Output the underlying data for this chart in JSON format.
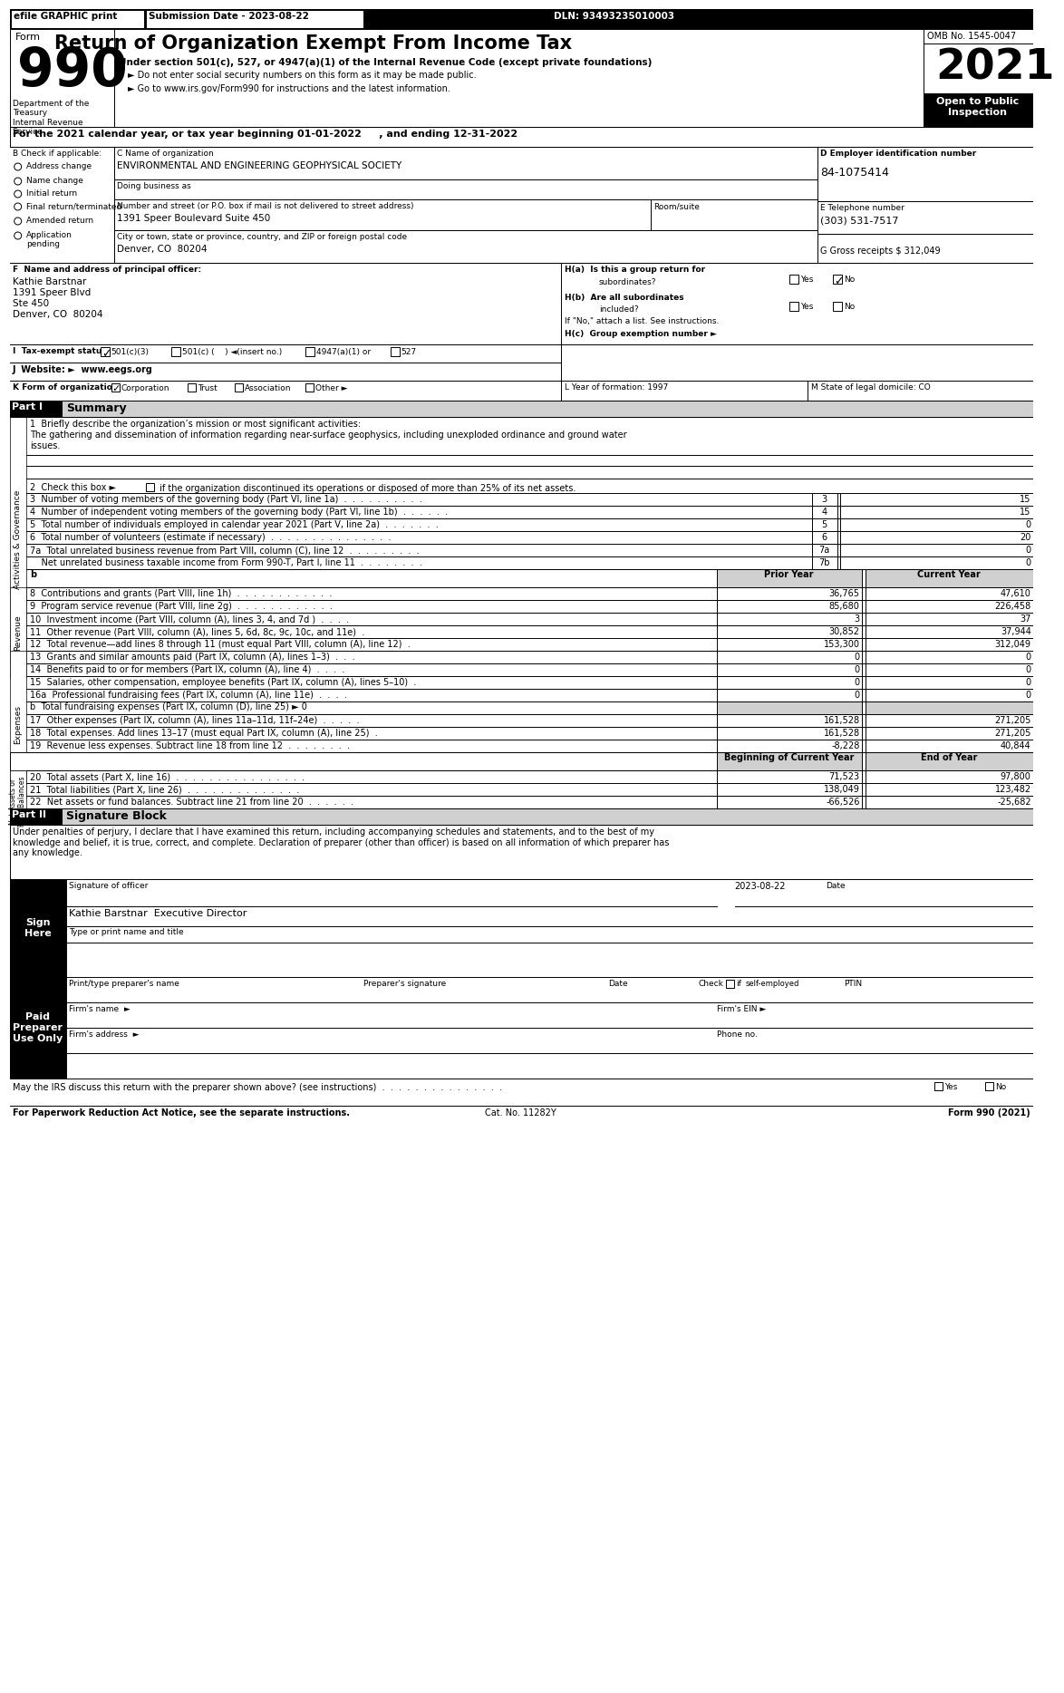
{
  "efile_text": "efile GRAPHIC print",
  "submission_date": "Submission Date - 2023-08-22",
  "dln": "DLN: 93493235010003",
  "form_number": "990",
  "title": "Return of Organization Exempt From Income Tax",
  "subtitle1": "Under section 501(c), 527, or 4947(a)(1) of the Internal Revenue Code (except private foundations)",
  "subtitle2": "► Do not enter social security numbers on this form as it may be made public.",
  "subtitle3": "► Go to www.irs.gov/Form990 for instructions and the latest information.",
  "omb": "OMB No. 1545-0047",
  "year": "2021",
  "dept_treasury": "Department of the\nTreasury\nInternal Revenue\nService",
  "tax_year_line": "For the 2021 calendar year, or tax year beginning 01-01-2022     , and ending 12-31-2022",
  "b_label": "B Check if applicable:",
  "check_items": [
    "Address change",
    "Name change",
    "Initial return",
    "Final return/terminated",
    "Amended return",
    "Application\npending"
  ],
  "c_label": "C Name of organization",
  "org_name": "ENVIRONMENTAL AND ENGINEERING GEOPHYSICAL SOCIETY",
  "dba_label": "Doing business as",
  "d_label": "D Employer identification number",
  "ein": "84-1075414",
  "street_label": "Number and street (or P.O. box if mail is not delivered to street address)",
  "room_label": "Room/suite",
  "street": "1391 Speer Boulevard Suite 450",
  "e_label": "E Telephone number",
  "phone": "(303) 531-7517",
  "city_label": "City or town, state or province, country, and ZIP or foreign postal code",
  "city": "Denver, CO  80204",
  "g_label": "G Gross receipts $ 312,049",
  "f_label": "F  Name and address of principal officer:",
  "officer_name": "Kathie Barstnar",
  "officer_addr1": "1391 Speer Blvd",
  "officer_addr2": "Ste 450",
  "officer_addr3": "Denver, CO  80204",
  "ha_label": "H(a)  Is this a group return for",
  "ha_subtext": "subordinates?",
  "hb_label": "H(b)  Are all subordinates",
  "hb_subtext": "included?",
  "hb_note": "If \"No,\" attach a list. See instructions.",
  "hc_label": "H(c)  Group exemption number ►",
  "i_label": "I  Tax-exempt status:",
  "tax_s1": "501(c)(3)",
  "tax_s2": "501(c) (    ) ◄(insert no.)",
  "tax_s3": "4947(a)(1) or",
  "tax_s4": "527",
  "j_label": "J  Website: ►  www.eegs.org",
  "k_label": "K Form of organization:",
  "k_corp": "Corporation",
  "k_trust": "Trust",
  "k_assoc": "Association",
  "k_other": "Other ►",
  "l_label": "L Year of formation: 1997",
  "m_label": "M State of legal domicile: CO",
  "part1_label": "Part I",
  "part1_title": "Summary",
  "mission_label": "1  Briefly describe the organization’s mission or most significant activities:",
  "mission_text": "The gathering and dissemination of information regarding near-surface geophysics, including unexploded ordinance and ground water\nissues.",
  "check2_text": "2  Check this box ►",
  "check2_rest": " if the organization discontinued its operations or disposed of more than 25% of its net assets.",
  "line3_label": "3  Number of voting members of the governing body (Part VI, line 1a)  .  .  .  .  .  .  .  .  .  .",
  "line3_num": "3",
  "line3_val": "15",
  "line4_label": "4  Number of independent voting members of the governing body (Part VI, line 1b)  .  .  .  .  .  .",
  "line4_num": "4",
  "line4_val": "15",
  "line5_label": "5  Total number of individuals employed in calendar year 2021 (Part V, line 2a)  .  .  .  .  .  .  .",
  "line5_num": "5",
  "line5_val": "0",
  "line6_label": "6  Total number of volunteers (estimate if necessary)  .  .  .  .  .  .  .  .  .  .  .  .  .  .  .",
  "line6_num": "6",
  "line6_val": "20",
  "line7a_label": "7a  Total unrelated business revenue from Part VIII, column (C), line 12  .  .  .  .  .  .  .  .  .",
  "line7a_num": "7a",
  "line7a_val": "0",
  "line7b_label": "    Net unrelated business taxable income from Form 990-T, Part I, line 11  .  .  .  .  .  .  .  .",
  "line7b_num": "7b",
  "line7b_val": "0",
  "prior_year": "Prior Year",
  "current_year": "Current Year",
  "b_header": "b",
  "line8_label": "8  Contributions and grants (Part VIII, line 1h)  .  .  .  .  .  .  .  .  .  .  .  .",
  "line8_prior": "36,765",
  "line8_curr": "47,610",
  "line9_label": "9  Program service revenue (Part VIII, line 2g)  .  .  .  .  .  .  .  .  .  .  .  .",
  "line9_prior": "85,680",
  "line9_curr": "226,458",
  "line10_label": "10  Investment income (Part VIII, column (A), lines 3, 4, and 7d )  .  .  .  .",
  "line10_prior": "3",
  "line10_curr": "37",
  "line11_label": "11  Other revenue (Part VIII, column (A), lines 5, 6d, 8c, 9c, 10c, and 11e)  .",
  "line11_prior": "30,852",
  "line11_curr": "37,944",
  "line12_label": "12  Total revenue—add lines 8 through 11 (must equal Part VIII, column (A), line 12)  .",
  "line12_prior": "153,300",
  "line12_curr": "312,049",
  "line13_label": "13  Grants and similar amounts paid (Part IX, column (A), lines 1–3)  .  .  .",
  "line13_prior": "0",
  "line13_curr": "0",
  "line14_label": "14  Benefits paid to or for members (Part IX, column (A), line 4)  .  .  .  .",
  "line14_prior": "0",
  "line14_curr": "0",
  "line15_label": "15  Salaries, other compensation, employee benefits (Part IX, column (A), lines 5–10)  .",
  "line15_prior": "0",
  "line15_curr": "0",
  "line16a_label": "16a  Professional fundraising fees (Part IX, column (A), line 11e)  .  .  .  .",
  "line16a_prior": "0",
  "line16a_curr": "0",
  "line16b_label": "b  Total fundraising expenses (Part IX, column (D), line 25) ► 0",
  "line17_label": "17  Other expenses (Part IX, column (A), lines 11a–11d, 11f–24e)  .  .  .  .  .",
  "line17_prior": "161,528",
  "line17_curr": "271,205",
  "line18_label": "18  Total expenses. Add lines 13–17 (must equal Part IX, column (A), line 25)  .",
  "line18_prior": "161,528",
  "line18_curr": "271,205",
  "line19_label": "19  Revenue less expenses. Subtract line 18 from line 12  .  .  .  .  .  .  .  .",
  "line19_prior": "-8,228",
  "line19_curr": "40,844",
  "boc_year": "Beginning of Current Year",
  "eoy_label": "End of Year",
  "line20_label": "20  Total assets (Part X, line 16)  .  .  .  .  .  .  .  .  .  .  .  .  .  .  .  .",
  "line20_boc": "71,523",
  "line20_eoy": "97,800",
  "line21_label": "21  Total liabilities (Part X, line 26)  .  .  .  .  .  .  .  .  .  .  .  .  .  .",
  "line21_boc": "138,049",
  "line21_eoy": "123,482",
  "line22_label": "22  Net assets or fund balances. Subtract line 21 from line 20  .  .  .  .  .  .",
  "line22_boc": "-66,526",
  "line22_eoy": "-25,682",
  "part2_label": "Part II",
  "part2_title": "Signature Block",
  "sig_perjury": "Under penalties of perjury, I declare that I have examined this return, including accompanying schedules and statements, and to the best of my\nknowledge and belief, it is true, correct, and complete. Declaration of preparer (other than officer) is based on all information of which preparer has\nany knowledge.",
  "sig_date": "2023-08-22",
  "sig_officer_label": "Signature of officer",
  "sig_date_label": "Date",
  "sig_name": "Kathie Barstnar  Executive Director",
  "sig_type": "Type or print name and title",
  "prep_name_label": "Print/type preparer's name",
  "prep_sig_label": "Preparer's signature",
  "prep_date_label": "Date",
  "prep_check_label": "Check",
  "prep_if_label": "if",
  "prep_self_label": "self-employed",
  "ptin_label": "PTIN",
  "firm_name_label": "Firm's name  ►",
  "firm_ein_label": "Firm's EIN ►",
  "firm_addr_label": "Firm's address  ►",
  "phone_label": "Phone no.",
  "discuss_label": "May the IRS discuss this return with the preparer shown above? (see instructions)  .  .  .  .  .  .  .  .  .  .  .  .  .  .  .",
  "paperwork_label": "For Paperwork Reduction Act Notice, see the separate instructions.",
  "cat_no": "Cat. No. 11282Y",
  "form_footer": "Form 990 (2021)"
}
